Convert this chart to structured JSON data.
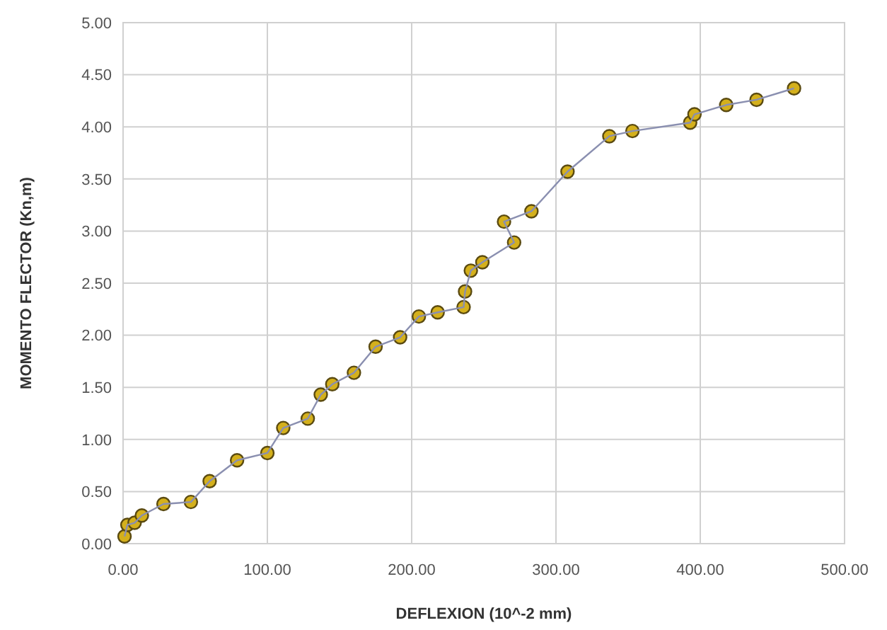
{
  "chart_data": {
    "type": "line",
    "xlabel": "DEFLEXION (10^-2 mm)",
    "ylabel": "MOMENTO FLECTOR (Kn,m)",
    "xlim": [
      0,
      500
    ],
    "ylim": [
      0,
      5
    ],
    "xticks": [
      {
        "value": 0,
        "label": "0.00"
      },
      {
        "value": 100,
        "label": "100.00"
      },
      {
        "value": 200,
        "label": "200.00"
      },
      {
        "value": 300,
        "label": "300.00"
      },
      {
        "value": 400,
        "label": "400.00"
      },
      {
        "value": 500,
        "label": "500.00"
      }
    ],
    "yticks": [
      {
        "value": 0,
        "label": "0.00"
      },
      {
        "value": 0.5,
        "label": "0.50"
      },
      {
        "value": 1,
        "label": "1.00"
      },
      {
        "value": 1.5,
        "label": "1.50"
      },
      {
        "value": 2,
        "label": "2.00"
      },
      {
        "value": 2.5,
        "label": "2.50"
      },
      {
        "value": 3,
        "label": "3.00"
      },
      {
        "value": 3.5,
        "label": "3.50"
      },
      {
        "value": 4,
        "label": "4.00"
      },
      {
        "value": 4.5,
        "label": "4.50"
      },
      {
        "value": 5,
        "label": "5.00"
      }
    ],
    "grid": true,
    "marker": "circle",
    "line_style": "solid",
    "series": [
      {
        "color": "#d4b01c",
        "x": [
          1,
          3,
          8,
          13,
          28,
          47,
          60,
          79,
          100,
          111,
          128,
          137,
          145,
          160,
          175,
          192,
          205,
          218,
          236,
          237,
          241,
          249,
          271,
          264,
          283,
          308,
          337,
          353,
          393,
          396,
          418,
          439,
          465
        ],
        "values": [
          0.07,
          0.18,
          0.2,
          0.27,
          0.38,
          0.4,
          0.6,
          0.8,
          0.87,
          1.11,
          1.2,
          1.43,
          1.53,
          1.64,
          1.89,
          1.98,
          2.18,
          2.22,
          2.27,
          2.42,
          2.62,
          2.7,
          2.89,
          3.09,
          3.19,
          3.57,
          3.91,
          3.96,
          4.04,
          4.12,
          4.21,
          4.26,
          4.37
        ]
      }
    ]
  }
}
